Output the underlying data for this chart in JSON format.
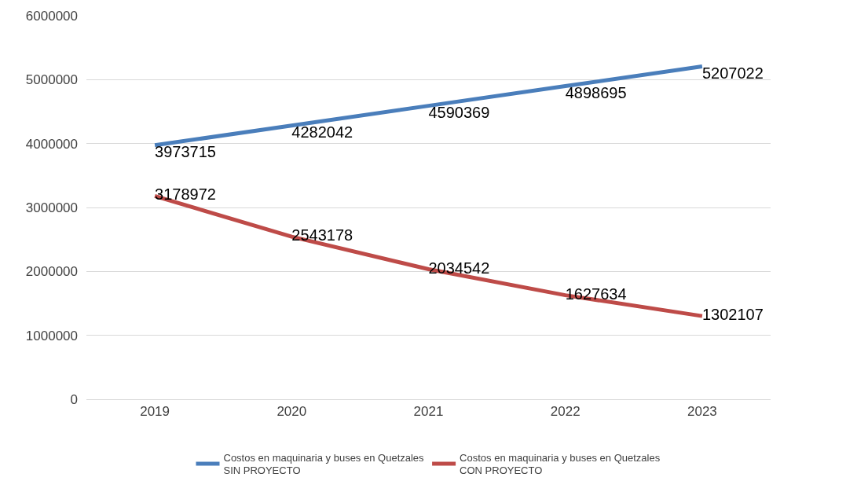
{
  "chart_data": {
    "type": "line",
    "categories": [
      "2019",
      "2020",
      "2021",
      "2022",
      "2023"
    ],
    "series": [
      {
        "name": "Costos en maquinaria y buses en Quetzales\nSIN PROYECTO",
        "color": "#4a7ebb",
        "values": [
          3973715,
          4282042,
          4590369,
          4898695,
          5207022
        ]
      },
      {
        "name": "Costos en maquinaria y buses en Quetzales\nCON PROYECTO",
        "color": "#be4b48",
        "values": [
          3178972,
          2543178,
          2034542,
          1627634,
          1302107
        ]
      }
    ],
    "ylim": [
      0,
      6000000
    ],
    "yticks": [
      0,
      1000000,
      2000000,
      3000000,
      4000000,
      5000000,
      6000000
    ],
    "grid": "y",
    "legend": "bottom",
    "data_labels": true,
    "marker": "none",
    "line_style": "solid"
  }
}
